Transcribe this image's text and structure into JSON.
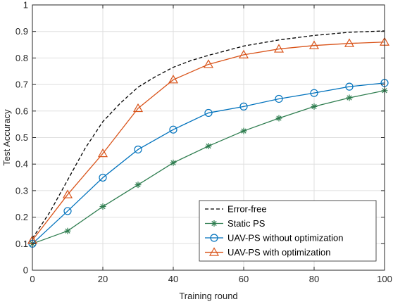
{
  "chart_data": {
    "type": "line",
    "title": "",
    "xlabel": "Training round",
    "ylabel": "Test Accuracy",
    "xlim": [
      0,
      100
    ],
    "ylim": [
      0,
      1
    ],
    "xticks": [
      0,
      20,
      40,
      60,
      80,
      100
    ],
    "yticks": [
      0,
      0.1,
      0.2,
      0.3,
      0.4,
      0.5,
      0.6,
      0.7,
      0.8,
      0.9,
      1
    ],
    "xtick_labels": [
      "0",
      "20",
      "40",
      "60",
      "80",
      "100"
    ],
    "ytick_labels": [
      "0",
      "0.1",
      "0.2",
      "0.3",
      "0.4",
      "0.5",
      "0.6",
      "0.7",
      "0.8",
      "0.9",
      "1"
    ],
    "grid": true,
    "legend_position": "bottom-right",
    "series": [
      {
        "name": "Error-free",
        "color": "#000000",
        "line_style": "dashed",
        "marker": "none",
        "x": [
          0,
          5,
          10,
          15,
          20,
          25,
          30,
          35,
          40,
          45,
          50,
          60,
          70,
          80,
          90,
          100
        ],
        "y": [
          0.12,
          0.22,
          0.34,
          0.46,
          0.56,
          0.63,
          0.69,
          0.73,
          0.765,
          0.79,
          0.81,
          0.845,
          0.868,
          0.885,
          0.897,
          0.902
        ]
      },
      {
        "name": "Static PS",
        "color": "#2e7d4f",
        "line_style": "solid",
        "marker": "asterisk",
        "x": [
          0,
          10,
          20,
          30,
          40,
          50,
          60,
          70,
          80,
          90,
          100
        ],
        "y": [
          0.1,
          0.148,
          0.24,
          0.322,
          0.405,
          0.468,
          0.525,
          0.573,
          0.617,
          0.65,
          0.677
        ]
      },
      {
        "name": "UAV-PS without optimization",
        "color": "#0072bd",
        "line_style": "solid",
        "marker": "circle",
        "x": [
          0,
          10,
          20,
          30,
          40,
          50,
          60,
          70,
          80,
          90,
          100
        ],
        "y": [
          0.1,
          0.223,
          0.349,
          0.455,
          0.53,
          0.593,
          0.617,
          0.646,
          0.668,
          0.692,
          0.706
        ]
      },
      {
        "name": "UAV-PS with optimization",
        "color": "#d95319",
        "line_style": "solid",
        "marker": "triangle",
        "x": [
          0,
          10,
          20,
          30,
          40,
          50,
          60,
          70,
          80,
          90,
          100
        ],
        "y": [
          0.113,
          0.285,
          0.44,
          0.61,
          0.718,
          0.776,
          0.812,
          0.834,
          0.847,
          0.855,
          0.86
        ]
      }
    ]
  }
}
